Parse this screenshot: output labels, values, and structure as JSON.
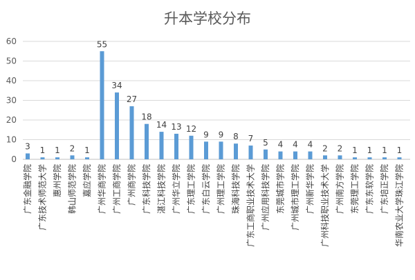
{
  "chart_data": {
    "type": "bar",
    "title": "升本学校分布",
    "xlabel": "",
    "ylabel": "",
    "ylim": [
      0,
      60
    ],
    "yticks": [
      0,
      10,
      20,
      30,
      40,
      50,
      60
    ],
    "grid": true,
    "legend": "none",
    "bar_color": "#5b9bd5",
    "categories": [
      "广东金融学院",
      "广东技术师范大学",
      "惠州学院",
      "韩山师范学院",
      "嘉应学院",
      "广州华商学院",
      "广州工商学院",
      "广州商学院",
      "广东科技学院",
      "湛江科技学院",
      "广州华立学院",
      "广东理工学院",
      "广东白云学院",
      "广州理工学院",
      "珠海科技学院",
      "广东工商职业技术大学",
      "广州应用科技学院",
      "东莞城市学院",
      "广州城市理工学院",
      "广州新华学院",
      "广州科技职业技术大学",
      "广州南方学院",
      "东莞理工学院",
      "广东东软学院",
      "广东培正学院",
      "华南农业大学珠江学院"
    ],
    "values": [
      3,
      1,
      1,
      2,
      1,
      55,
      34,
      27,
      18,
      14,
      13,
      12,
      9,
      9,
      8,
      7,
      5,
      4,
      4,
      4,
      2,
      2,
      1,
      1,
      1,
      1
    ]
  }
}
